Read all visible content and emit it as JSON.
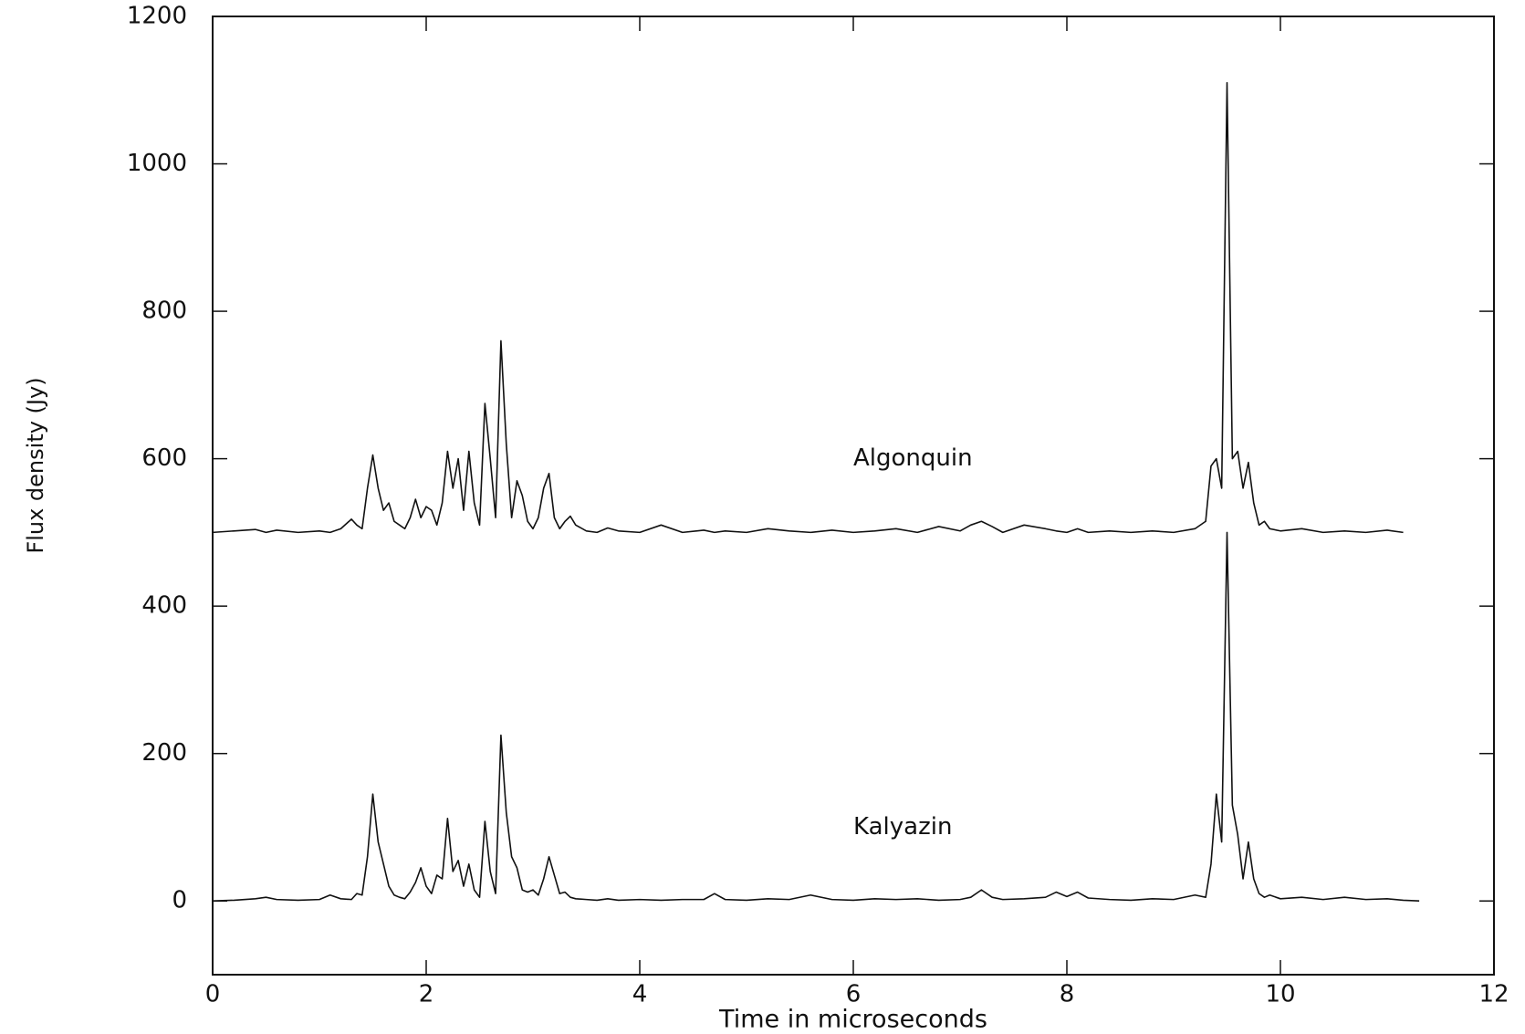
{
  "chart_data": {
    "type": "line",
    "xlabel": "Time in microseconds",
    "ylabel": "Flux density (Jy)",
    "xlim": [
      0,
      12
    ],
    "xticks": [
      0,
      2,
      4,
      6,
      8,
      10,
      12
    ],
    "ylim": [
      -100,
      1200
    ],
    "yticks": [
      0,
      200,
      400,
      600,
      800,
      1000,
      1200
    ],
    "x": [
      0,
      0.2,
      0.4,
      0.5,
      0.6,
      0.8,
      1.0,
      1.1,
      1.2,
      1.3,
      1.35,
      1.4,
      1.45,
      1.5,
      1.55,
      1.6,
      1.65,
      1.7,
      1.75,
      1.8,
      1.85,
      1.9,
      1.95,
      2.0,
      2.05,
      2.1,
      2.15,
      2.2,
      2.25,
      2.3,
      2.35,
      2.4,
      2.45,
      2.5,
      2.55,
      2.6,
      2.65,
      2.7,
      2.75,
      2.8,
      2.85,
      2.9,
      2.95,
      3.0,
      3.05,
      3.1,
      3.15,
      3.2,
      3.25,
      3.3,
      3.35,
      3.4,
      3.5,
      3.6,
      3.7,
      3.8,
      4.0,
      4.2,
      4.4,
      4.6,
      4.7,
      4.8,
      5.0,
      5.2,
      5.4,
      5.6,
      5.8,
      6.0,
      6.2,
      6.4,
      6.6,
      6.8,
      7.0,
      7.1,
      7.2,
      7.3,
      7.4,
      7.6,
      7.8,
      7.9,
      8.0,
      8.1,
      8.2,
      8.4,
      8.6,
      8.8,
      9.0,
      9.2,
      9.3,
      9.35,
      9.4,
      9.45,
      9.5,
      9.55,
      9.6,
      9.65,
      9.7,
      9.75,
      9.8,
      9.85,
      9.9,
      10.0,
      10.2,
      10.4,
      10.6,
      10.8,
      11.0,
      11.15,
      11.3
    ],
    "series": [
      {
        "name": "Algonquin",
        "color": "#111111",
        "values": [
          500,
          502,
          504,
          500,
          503,
          500,
          502,
          500,
          505,
          518,
          510,
          505,
          560,
          605,
          560,
          530,
          540,
          515,
          510,
          505,
          520,
          545,
          520,
          535,
          530,
          510,
          540,
          610,
          560,
          600,
          530,
          610,
          540,
          510,
          675,
          600,
          520,
          760,
          620,
          520,
          570,
          550,
          515,
          505,
          520,
          560,
          580,
          520,
          505,
          515,
          522,
          510,
          502,
          500,
          506,
          502,
          500,
          510,
          500,
          503,
          500,
          502,
          500,
          505,
          502,
          500,
          503,
          500,
          502,
          505,
          500,
          508,
          502,
          510,
          515,
          508,
          500,
          510,
          505,
          502,
          500,
          505,
          500,
          502,
          500,
          502,
          500,
          505,
          515,
          590,
          600,
          560,
          1110,
          600,
          610,
          560,
          595,
          540,
          510,
          515,
          505,
          502,
          505,
          500,
          502,
          500,
          503,
          500,
          null
        ]
      },
      {
        "name": "Kalyazin",
        "color": "#111111",
        "values": [
          0,
          1,
          3,
          5,
          2,
          1,
          2,
          8,
          3,
          2,
          10,
          8,
          60,
          145,
          80,
          50,
          20,
          8,
          5,
          3,
          12,
          25,
          45,
          20,
          10,
          35,
          30,
          112,
          40,
          55,
          20,
          50,
          15,
          5,
          108,
          40,
          10,
          225,
          120,
          60,
          45,
          15,
          12,
          15,
          8,
          30,
          60,
          35,
          10,
          12,
          5,
          3,
          2,
          1,
          3,
          1,
          2,
          1,
          2,
          2,
          10,
          2,
          1,
          3,
          2,
          8,
          2,
          1,
          3,
          2,
          3,
          1,
          2,
          5,
          15,
          5,
          2,
          3,
          5,
          12,
          6,
          12,
          4,
          2,
          1,
          3,
          2,
          8,
          5,
          50,
          145,
          80,
          500,
          130,
          90,
          30,
          80,
          30,
          10,
          5,
          8,
          3,
          5,
          2,
          5,
          2,
          3,
          1,
          0
        ]
      }
    ]
  }
}
